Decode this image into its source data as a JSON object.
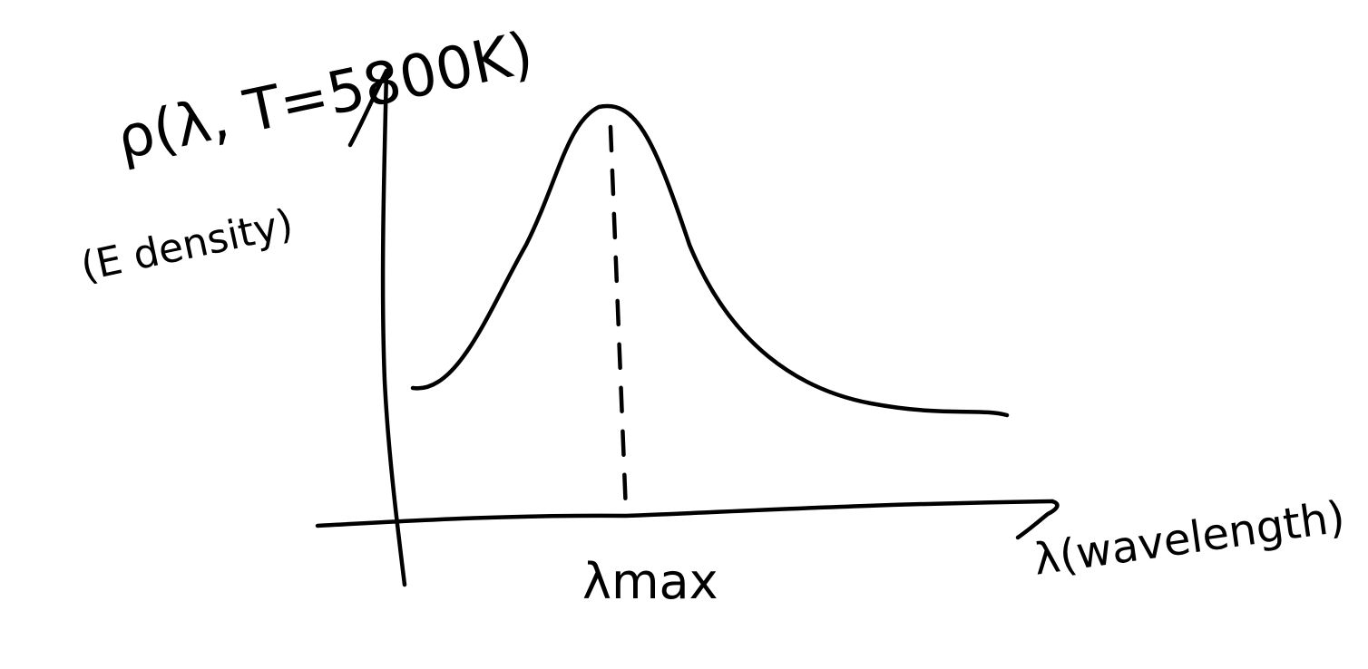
{
  "labels": {
    "y_axis": "ρ(λ, T=5800K)",
    "y_axis_note": "(E density)",
    "peak": "λmax",
    "x_axis": "λ(wavelength)"
  },
  "colors": {
    "ink": "#000000",
    "background": "#ffffff"
  }
}
